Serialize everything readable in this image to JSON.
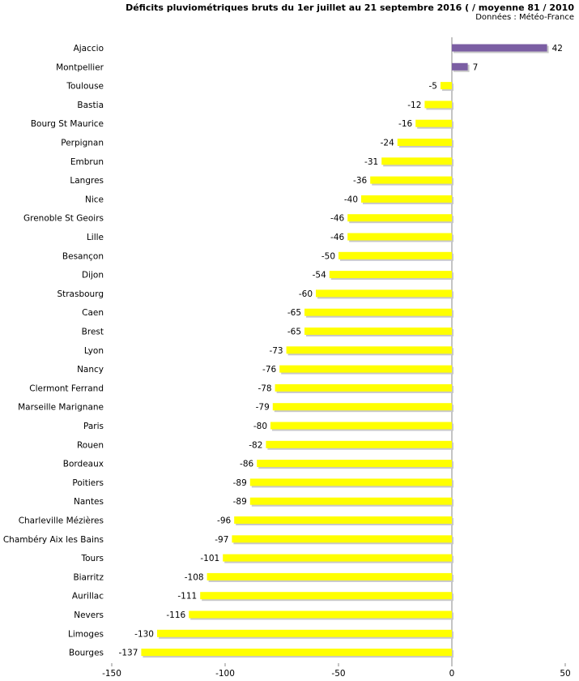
{
  "chart_data": {
    "type": "bar",
    "orientation": "horizontal",
    "title": "Déficits pluviométriques bruts du 1er juillet au 21 septembre 2016 ( / moyenne 81 / 2010",
    "subtitle": "Données : Météo-France",
    "categories": [
      "Ajaccio",
      "Montpellier",
      "Toulouse",
      "Bastia",
      "Bourg St Maurice",
      "Perpignan",
      "Embrun",
      "Langres",
      "Nice",
      "Grenoble St Geoirs",
      "Lille",
      "Besançon",
      "Dijon",
      "Strasbourg",
      "Caen",
      "Brest",
      "Lyon",
      "Nancy",
      "Clermont Ferrand",
      "Marseille Marignane",
      "Paris",
      "Rouen",
      "Bordeaux",
      "Poitiers",
      "Nantes",
      "Charleville Mézières",
      "Chambéry Aix les Bains",
      "Tours",
      "Biarritz",
      "Aurillac",
      "Nevers",
      "Limoges",
      "Bourges"
    ],
    "values": [
      42,
      7,
      -5,
      -12,
      -16,
      -24,
      -31,
      -36,
      -40,
      -46,
      -46,
      -50,
      -54,
      -60,
      -65,
      -65,
      -73,
      -76,
      -78,
      -79,
      -80,
      -82,
      -86,
      -89,
      -89,
      -96,
      -97,
      -101,
      -108,
      -111,
      -116,
      -130,
      -137
    ],
    "xlim": [
      -150,
      50
    ],
    "xticks": [
      -150,
      -100,
      -50,
      0,
      50
    ],
    "grid": false,
    "colors": {
      "positive": "#7b5ea3",
      "negative": "#ffff00",
      "shadow": "#c8c8c8",
      "axis": "#888888"
    }
  }
}
